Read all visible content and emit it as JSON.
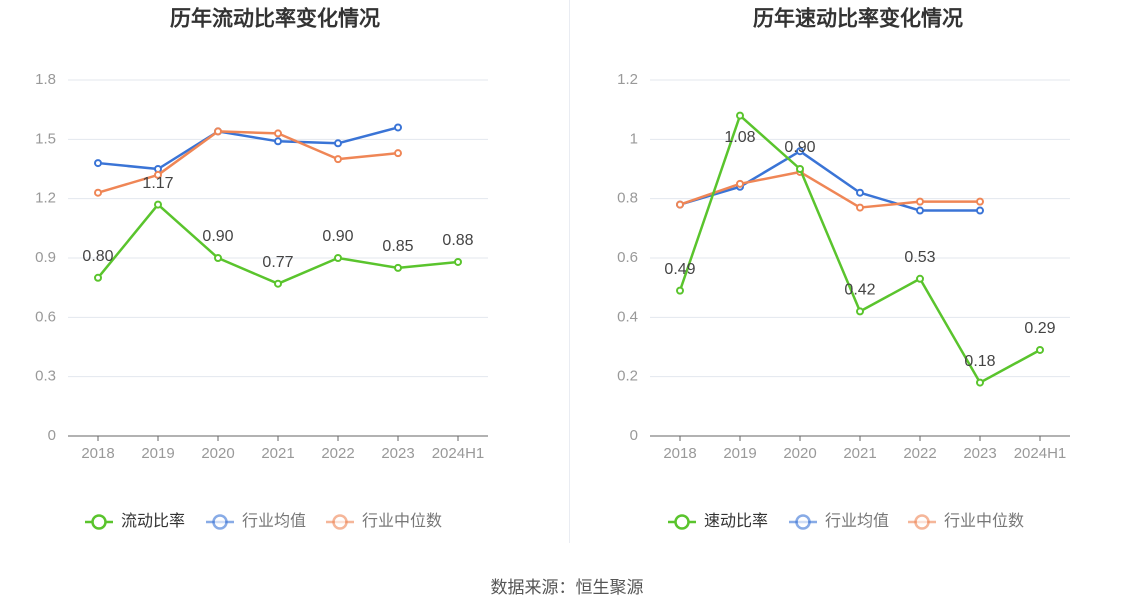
{
  "source": "数据来源：恒生聚源",
  "colors": {
    "main": "#5ac42d",
    "avg": "#3a74d6",
    "median": "#ef8656",
    "axis": "#999999",
    "grid": "#e3e7ee"
  },
  "legend_icon": "circle-line-marker",
  "chart_data": [
    {
      "type": "line",
      "title": "历年流动比率变化情况",
      "categories": [
        "2018",
        "2019",
        "2020",
        "2021",
        "2022",
        "2023",
        "2024H1"
      ],
      "ylim": [
        0,
        1.8
      ],
      "yticks": [
        "0",
        "0.3",
        "0.6",
        "0.9",
        "1.2",
        "1.5",
        "1.8"
      ],
      "grid": true,
      "legend_position": "bottom",
      "series": [
        {
          "name": "流动比率",
          "role": "main",
          "values": [
            0.8,
            1.17,
            0.9,
            0.77,
            0.9,
            0.85,
            0.88
          ],
          "labels": [
            "0.80",
            "1.17",
            "0.90",
            "0.77",
            "0.90",
            "0.85",
            "0.88"
          ]
        },
        {
          "name": "行业均值",
          "role": "avg",
          "values": [
            1.38,
            1.35,
            1.54,
            1.49,
            1.48,
            1.56,
            null
          ]
        },
        {
          "name": "行业中位数",
          "role": "median",
          "values": [
            1.23,
            1.32,
            1.54,
            1.53,
            1.4,
            1.43,
            null
          ]
        }
      ]
    },
    {
      "type": "line",
      "title": "历年速动比率变化情况",
      "categories": [
        "2018",
        "2019",
        "2020",
        "2021",
        "2022",
        "2023",
        "2024H1"
      ],
      "ylim": [
        0,
        1.2
      ],
      "yticks": [
        "0",
        "0.2",
        "0.4",
        "0.6",
        "0.8",
        "1",
        "1.2"
      ],
      "grid": true,
      "legend_position": "bottom",
      "series": [
        {
          "name": "速动比率",
          "role": "main",
          "values": [
            0.49,
            1.08,
            0.9,
            0.42,
            0.53,
            0.18,
            0.29
          ],
          "labels": [
            "0.49",
            "1.08",
            "0.90",
            "0.42",
            "0.53",
            "0.18",
            "0.29"
          ]
        },
        {
          "name": "行业均值",
          "role": "avg",
          "values": [
            0.78,
            0.84,
            0.96,
            0.82,
            0.76,
            0.76,
            null
          ]
        },
        {
          "name": "行业中位数",
          "role": "median",
          "values": [
            0.78,
            0.85,
            0.89,
            0.77,
            0.79,
            0.79,
            null
          ]
        }
      ]
    }
  ]
}
